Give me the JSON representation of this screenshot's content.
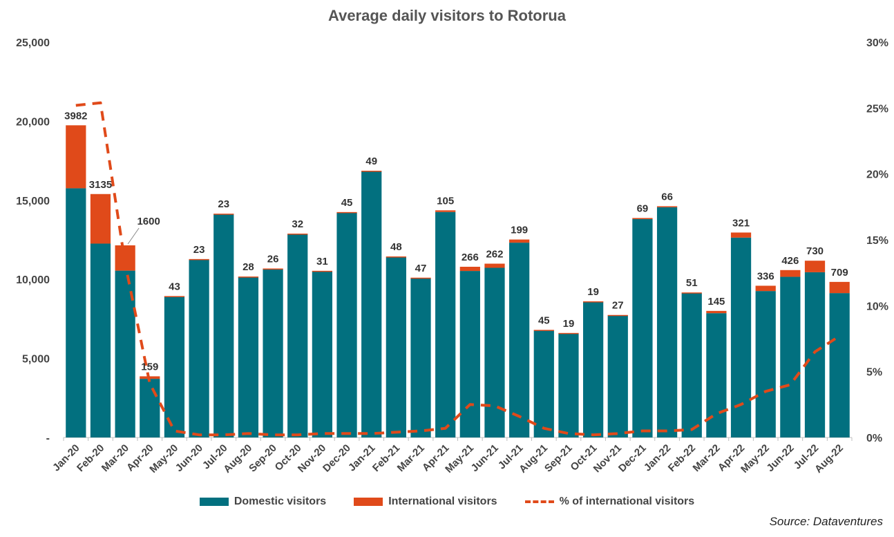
{
  "colors": {
    "domestic": "#02707f",
    "international": "#e04a1a",
    "line": "#e04a1a",
    "axis": "#bfbfbf"
  },
  "source": "Source: Dataventures",
  "chart_data": {
    "type": "bar",
    "stacked": true,
    "title": "Average daily visitors to Rotorua",
    "categories": [
      "Jan-20",
      "Feb-20",
      "Mar-20",
      "Apr-20",
      "May-20",
      "Jun-20",
      "Jul-20",
      "Aug-20",
      "Sep-20",
      "Oct-20",
      "Nov-20",
      "Dec-20",
      "Jan-21",
      "Feb-21",
      "Mar-21",
      "Apr-21",
      "May-21",
      "Jun-21",
      "Jul-21",
      "Aug-21",
      "Sep-21",
      "Oct-21",
      "Nov-21",
      "Dec-21",
      "Jan-22",
      "Feb-22",
      "Mar-22",
      "Apr-22",
      "May-22",
      "Jun-22",
      "Jul-22",
      "Aug-22"
    ],
    "series": [
      {
        "name": "Domestic visitors",
        "axis": "left",
        "values": [
          15760,
          12260,
          10550,
          3710,
          8900,
          11260,
          14130,
          10150,
          10660,
          12860,
          10510,
          14210,
          16820,
          11400,
          10060,
          14260,
          10530,
          10730,
          12320,
          6760,
          6590,
          8590,
          7720,
          13810,
          14560,
          9120,
          7860,
          12640,
          9260,
          10160,
          10450,
          9130
        ]
      },
      {
        "name": "International visitors",
        "axis": "left",
        "values": [
          3982,
          3135,
          1600,
          159,
          43,
          23,
          23,
          28,
          26,
          32,
          31,
          45,
          49,
          48,
          47,
          105,
          266,
          262,
          199,
          45,
          19,
          19,
          27,
          69,
          66,
          51,
          145,
          321,
          336,
          426,
          730,
          709
        ]
      },
      {
        "name": "% of international visitors",
        "type": "line",
        "axis": "right",
        "values": [
          25.2,
          25.4,
          13.2,
          4.1,
          0.5,
          0.2,
          0.2,
          0.3,
          0.2,
          0.2,
          0.3,
          0.3,
          0.3,
          0.4,
          0.5,
          0.7,
          2.5,
          2.4,
          1.6,
          0.7,
          0.3,
          0.2,
          0.3,
          0.5,
          0.5,
          0.6,
          1.8,
          2.5,
          3.5,
          4.0,
          6.5,
          7.7
        ]
      }
    ],
    "data_labels": [
      "3982",
      "3135",
      "1600",
      "159",
      "43",
      "23",
      "23",
      "28",
      "26",
      "32",
      "31",
      "45",
      "49",
      "48",
      "47",
      "105",
      "266",
      "262",
      "199",
      "45",
      "19",
      "19",
      "27",
      "69",
      "66",
      "51",
      "145",
      "321",
      "336",
      "426",
      "730",
      "709"
    ],
    "y_left": {
      "ylim": [
        0,
        25000
      ],
      "ticks": [
        "-",
        "5,000",
        "10,000",
        "15,000",
        "20,000",
        "25,000"
      ]
    },
    "y_right": {
      "ylim": [
        0,
        30
      ],
      "ticks": [
        "0%",
        "5%",
        "10%",
        "15%",
        "20%",
        "25%",
        "30%"
      ]
    },
    "legend": {
      "position": "bottom"
    },
    "grid": false
  }
}
